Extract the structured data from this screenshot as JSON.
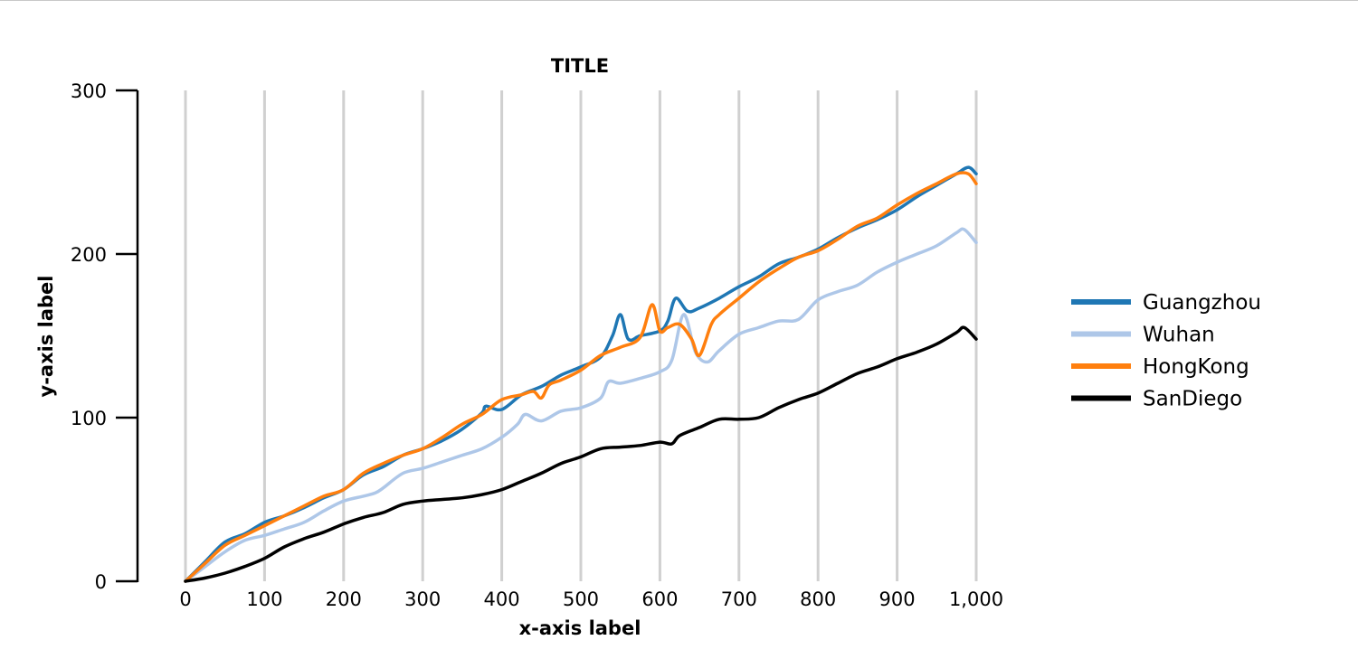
{
  "chart_data": {
    "type": "line",
    "title": "TITLE",
    "xlabel": "x-axis label",
    "ylabel": "y-axis label",
    "xlim": [
      0,
      1000
    ],
    "ylim": [
      0,
      300
    ],
    "xticks": [
      0,
      100,
      200,
      300,
      400,
      500,
      600,
      700,
      800,
      900,
      1000
    ],
    "xtick_labels": [
      "0",
      "100",
      "200",
      "300",
      "400",
      "500",
      "600",
      "700",
      "800",
      "900",
      "1,000"
    ],
    "yticks": [
      0,
      100,
      200,
      300
    ],
    "ytick_labels": [
      "0",
      "100",
      "200",
      "300"
    ],
    "grid": "vertical",
    "legend_position": "right",
    "series": [
      {
        "name": "Guangzhou",
        "color": "#1f77b4",
        "points": [
          [
            0,
            0
          ],
          [
            25,
            12
          ],
          [
            50,
            24
          ],
          [
            75,
            29
          ],
          [
            100,
            36
          ],
          [
            125,
            40
          ],
          [
            150,
            45
          ],
          [
            175,
            51
          ],
          [
            200,
            56
          ],
          [
            225,
            65
          ],
          [
            250,
            70
          ],
          [
            275,
            77
          ],
          [
            300,
            81
          ],
          [
            325,
            86
          ],
          [
            350,
            93
          ],
          [
            375,
            103
          ],
          [
            380,
            107
          ],
          [
            400,
            105
          ],
          [
            425,
            114
          ],
          [
            450,
            119
          ],
          [
            475,
            126
          ],
          [
            500,
            131
          ],
          [
            525,
            137
          ],
          [
            540,
            150
          ],
          [
            550,
            163
          ],
          [
            560,
            148
          ],
          [
            575,
            150
          ],
          [
            600,
            153
          ],
          [
            610,
            159
          ],
          [
            620,
            173
          ],
          [
            635,
            165
          ],
          [
            650,
            167
          ],
          [
            675,
            173
          ],
          [
            700,
            180
          ],
          [
            725,
            186
          ],
          [
            750,
            194
          ],
          [
            775,
            198
          ],
          [
            800,
            203
          ],
          [
            825,
            210
          ],
          [
            850,
            216
          ],
          [
            875,
            221
          ],
          [
            900,
            227
          ],
          [
            925,
            235
          ],
          [
            950,
            242
          ],
          [
            975,
            249
          ],
          [
            990,
            253
          ],
          [
            1000,
            249
          ]
        ]
      },
      {
        "name": "Wuhan",
        "color": "#aec7e8",
        "points": [
          [
            0,
            0
          ],
          [
            25,
            9
          ],
          [
            50,
            18
          ],
          [
            75,
            25
          ],
          [
            100,
            28
          ],
          [
            125,
            32
          ],
          [
            150,
            36
          ],
          [
            175,
            43
          ],
          [
            200,
            49
          ],
          [
            225,
            52
          ],
          [
            240,
            54
          ],
          [
            250,
            57
          ],
          [
            275,
            66
          ],
          [
            300,
            69
          ],
          [
            325,
            73
          ],
          [
            350,
            77
          ],
          [
            375,
            81
          ],
          [
            400,
            88
          ],
          [
            420,
            96
          ],
          [
            430,
            102
          ],
          [
            450,
            98
          ],
          [
            475,
            104
          ],
          [
            500,
            106
          ],
          [
            525,
            112
          ],
          [
            535,
            122
          ],
          [
            550,
            121
          ],
          [
            575,
            124
          ],
          [
            600,
            128
          ],
          [
            615,
            135
          ],
          [
            630,
            163
          ],
          [
            645,
            140
          ],
          [
            660,
            134
          ],
          [
            675,
            141
          ],
          [
            700,
            151
          ],
          [
            725,
            155
          ],
          [
            750,
            159
          ],
          [
            775,
            160
          ],
          [
            800,
            172
          ],
          [
            825,
            177
          ],
          [
            850,
            181
          ],
          [
            875,
            189
          ],
          [
            900,
            195
          ],
          [
            925,
            200
          ],
          [
            950,
            205
          ],
          [
            975,
            213
          ],
          [
            985,
            215
          ],
          [
            1000,
            207
          ]
        ]
      },
      {
        "name": "HongKong",
        "color": "#ff7f0e",
        "points": [
          [
            0,
            0
          ],
          [
            25,
            11
          ],
          [
            50,
            22
          ],
          [
            75,
            28
          ],
          [
            100,
            34
          ],
          [
            125,
            40
          ],
          [
            150,
            46
          ],
          [
            175,
            52
          ],
          [
            200,
            56
          ],
          [
            225,
            66
          ],
          [
            250,
            72
          ],
          [
            275,
            77
          ],
          [
            300,
            81
          ],
          [
            325,
            88
          ],
          [
            350,
            96
          ],
          [
            375,
            102
          ],
          [
            400,
            111
          ],
          [
            425,
            114
          ],
          [
            440,
            116
          ],
          [
            450,
            112
          ],
          [
            460,
            120
          ],
          [
            475,
            123
          ],
          [
            500,
            129
          ],
          [
            525,
            138
          ],
          [
            550,
            143
          ],
          [
            575,
            149
          ],
          [
            590,
            169
          ],
          [
            600,
            153
          ],
          [
            610,
            155
          ],
          [
            625,
            157
          ],
          [
            640,
            148
          ],
          [
            650,
            138
          ],
          [
            665,
            157
          ],
          [
            675,
            163
          ],
          [
            700,
            173
          ],
          [
            725,
            183
          ],
          [
            750,
            191
          ],
          [
            775,
            198
          ],
          [
            800,
            202
          ],
          [
            825,
            209
          ],
          [
            850,
            217
          ],
          [
            875,
            222
          ],
          [
            900,
            230
          ],
          [
            925,
            237
          ],
          [
            950,
            243
          ],
          [
            975,
            249
          ],
          [
            990,
            249
          ],
          [
            1000,
            243
          ]
        ]
      },
      {
        "name": "SanDiego",
        "color": "#000000",
        "points": [
          [
            0,
            0
          ],
          [
            25,
            2
          ],
          [
            50,
            5
          ],
          [
            75,
            9
          ],
          [
            100,
            14
          ],
          [
            125,
            21
          ],
          [
            150,
            26
          ],
          [
            175,
            30
          ],
          [
            200,
            35
          ],
          [
            225,
            39
          ],
          [
            250,
            42
          ],
          [
            275,
            47
          ],
          [
            300,
            49
          ],
          [
            325,
            50
          ],
          [
            350,
            51
          ],
          [
            375,
            53
          ],
          [
            400,
            56
          ],
          [
            425,
            61
          ],
          [
            450,
            66
          ],
          [
            475,
            72
          ],
          [
            500,
            76
          ],
          [
            525,
            81
          ],
          [
            550,
            82
          ],
          [
            575,
            83
          ],
          [
            600,
            85
          ],
          [
            615,
            84
          ],
          [
            625,
            89
          ],
          [
            650,
            94
          ],
          [
            675,
            99
          ],
          [
            700,
            99
          ],
          [
            725,
            100
          ],
          [
            750,
            106
          ],
          [
            775,
            111
          ],
          [
            800,
            115
          ],
          [
            825,
            121
          ],
          [
            850,
            127
          ],
          [
            875,
            131
          ],
          [
            900,
            136
          ],
          [
            925,
            140
          ],
          [
            950,
            145
          ],
          [
            975,
            152
          ],
          [
            985,
            155
          ],
          [
            1000,
            148
          ]
        ]
      }
    ]
  }
}
